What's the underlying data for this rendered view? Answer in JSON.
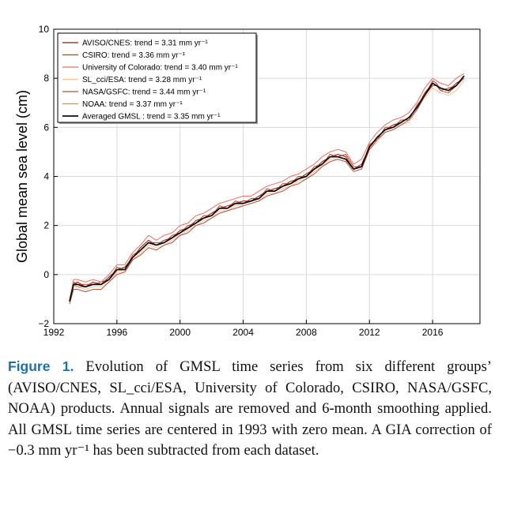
{
  "chart_data": {
    "type": "line",
    "title": "",
    "xlabel": "",
    "ylabel": "Global mean sea level (cm)",
    "xlim": [
      1992,
      2019
    ],
    "ylim": [
      -2,
      10
    ],
    "xticks": [
      1992,
      1996,
      2000,
      2004,
      2008,
      2012,
      2016
    ],
    "yticks": [
      -2,
      0,
      2,
      4,
      6,
      8,
      10
    ],
    "grid": true,
    "legend_position": "top-left",
    "x": [
      1993.0,
      1993.25,
      1993.5,
      1994.0,
      1994.5,
      1995.0,
      1995.5,
      1996.0,
      1996.5,
      1997.0,
      1997.5,
      1998.0,
      1998.5,
      1999.0,
      1999.5,
      2000.0,
      2000.5,
      2001.0,
      2001.5,
      2002.0,
      2002.5,
      2003.0,
      2003.5,
      2004.0,
      2004.5,
      2005.0,
      2005.5,
      2006.0,
      2006.5,
      2007.0,
      2007.5,
      2008.0,
      2008.5,
      2009.0,
      2009.5,
      2010.0,
      2010.5,
      2011.0,
      2011.5,
      2012.0,
      2012.5,
      2013.0,
      2013.5,
      2014.0,
      2014.5,
      2015.0,
      2015.5,
      2016.0,
      2016.25,
      2016.5,
      2017.0,
      2017.5,
      2018.0
    ],
    "series": [
      {
        "name": "AVISO/CNES: trend = 3.31 mm yr⁻¹",
        "color": "#8c1c13",
        "values": [
          -1.1,
          -0.4,
          -0.3,
          -0.5,
          -0.3,
          -0.4,
          -0.1,
          0.2,
          0.3,
          0.7,
          1.1,
          1.4,
          1.2,
          1.4,
          1.5,
          1.8,
          1.9,
          2.2,
          2.3,
          2.5,
          2.7,
          2.8,
          2.9,
          3.0,
          3.0,
          3.2,
          3.4,
          3.5,
          3.6,
          3.8,
          3.9,
          4.1,
          4.3,
          4.6,
          4.8,
          4.9,
          4.8,
          4.3,
          4.5,
          5.2,
          5.6,
          5.9,
          6.1,
          6.2,
          6.4,
          6.8,
          7.4,
          7.8,
          7.7,
          7.6,
          7.5,
          7.8,
          8.0
        ]
      },
      {
        "name": "CSIRO: trend = 3.36 mm yr⁻¹",
        "color": "#c0392b",
        "values": [
          -1.0,
          -0.3,
          -0.4,
          -0.4,
          -0.4,
          -0.3,
          -0.2,
          0.3,
          0.2,
          0.8,
          1.0,
          1.3,
          1.3,
          1.3,
          1.6,
          1.7,
          2.0,
          2.1,
          2.4,
          2.4,
          2.8,
          2.7,
          3.0,
          2.9,
          3.1,
          3.1,
          3.5,
          3.4,
          3.7,
          3.7,
          4.0,
          4.0,
          4.4,
          4.5,
          4.9,
          4.8,
          4.9,
          4.4,
          4.4,
          5.3,
          5.5,
          6.0,
          6.0,
          6.3,
          6.3,
          6.9,
          7.3,
          7.9,
          7.8,
          7.5,
          7.6,
          7.7,
          8.1
        ]
      },
      {
        "name": "University of Colorado: trend = 3.40 mm yr⁻¹",
        "color": "#e8705f",
        "values": [
          -1.1,
          -0.2,
          -0.2,
          -0.3,
          -0.2,
          -0.3,
          0.0,
          0.4,
          0.4,
          0.9,
          1.2,
          1.6,
          1.4,
          1.6,
          1.7,
          2.0,
          2.1,
          2.4,
          2.5,
          2.7,
          2.9,
          3.0,
          3.1,
          3.2,
          3.2,
          3.4,
          3.6,
          3.7,
          3.8,
          4.0,
          4.1,
          4.3,
          4.5,
          4.8,
          5.0,
          5.1,
          5.0,
          4.5,
          4.7,
          5.4,
          5.8,
          6.1,
          6.3,
          6.4,
          6.6,
          7.0,
          7.6,
          8.0,
          7.9,
          7.8,
          7.7,
          8.0,
          8.2
        ]
      },
      {
        "name": "SL_cci/ESA: trend = 3.28 mm yr⁻¹",
        "color": "#f6c39a",
        "values": [
          -1.0,
          -0.5,
          -0.5,
          -0.6,
          -0.5,
          -0.5,
          -0.3,
          0.1,
          0.1,
          0.6,
          0.9,
          1.2,
          1.1,
          1.2,
          1.4,
          1.6,
          1.8,
          2.0,
          2.2,
          2.3,
          2.6,
          2.6,
          2.8,
          2.8,
          2.9,
          3.0,
          3.3,
          3.3,
          3.5,
          3.6,
          3.8,
          3.9,
          4.2,
          4.4,
          4.7,
          4.7,
          4.6,
          4.2,
          4.3,
          5.1,
          5.4,
          5.8,
          5.9,
          6.1,
          6.2,
          6.7,
          7.2,
          7.6,
          7.5,
          7.4,
          7.3,
          7.5,
          7.9
        ]
      },
      {
        "name": "NASA/GSFC: trend = 3.44 mm yr⁻¹",
        "color": "#b5513a",
        "values": [
          -1.2,
          -0.6,
          -0.6,
          -0.7,
          -0.6,
          -0.6,
          -0.3,
          0.0,
          0.1,
          0.6,
          0.8,
          1.1,
          1.0,
          1.2,
          1.3,
          1.6,
          1.7,
          2.0,
          2.1,
          2.3,
          2.5,
          2.6,
          2.7,
          2.8,
          2.9,
          3.0,
          3.2,
          3.3,
          3.4,
          3.6,
          3.7,
          3.9,
          4.1,
          4.4,
          4.6,
          4.7,
          4.6,
          4.2,
          4.3,
          5.1,
          5.5,
          5.8,
          5.9,
          6.1,
          6.3,
          6.7,
          7.3,
          7.7,
          7.7,
          7.5,
          7.4,
          7.7,
          8.0
        ]
      },
      {
        "name": "NOAA: trend = 3.37 mm yr⁻¹",
        "color": "#d9826a",
        "values": [
          -1.0,
          -0.4,
          -0.5,
          -0.5,
          -0.4,
          -0.4,
          -0.2,
          0.2,
          0.2,
          0.7,
          1.0,
          1.3,
          1.2,
          1.3,
          1.5,
          1.7,
          1.9,
          2.1,
          2.3,
          2.4,
          2.7,
          2.7,
          2.9,
          2.9,
          3.0,
          3.1,
          3.4,
          3.4,
          3.6,
          3.7,
          3.9,
          4.0,
          4.3,
          4.5,
          4.8,
          4.8,
          4.7,
          4.3,
          4.4,
          5.2,
          5.6,
          5.9,
          6.0,
          6.2,
          6.4,
          6.8,
          7.3,
          7.8,
          7.7,
          7.6,
          7.5,
          7.7,
          8.0
        ]
      },
      {
        "name": "Averaged GMSL : trend = 3.35 mm yr⁻¹",
        "color": "#111111",
        "values": [
          -1.1,
          -0.4,
          -0.4,
          -0.5,
          -0.4,
          -0.4,
          -0.2,
          0.2,
          0.2,
          0.7,
          1.0,
          1.3,
          1.2,
          1.3,
          1.5,
          1.7,
          1.9,
          2.1,
          2.3,
          2.4,
          2.7,
          2.7,
          2.9,
          2.9,
          3.0,
          3.1,
          3.4,
          3.4,
          3.6,
          3.7,
          3.9,
          4.0,
          4.3,
          4.5,
          4.8,
          4.8,
          4.7,
          4.3,
          4.4,
          5.2,
          5.6,
          5.9,
          6.0,
          6.2,
          6.4,
          6.8,
          7.3,
          7.8,
          7.7,
          7.6,
          7.5,
          7.7,
          8.1
        ]
      }
    ]
  },
  "caption": {
    "label": "Figure 1.",
    "text": " Evolution of GMSL time series from six different groups’ (AVISO/CNES, SL_cci/ESA, University of Colorado, CSIRO, NASA/GSFC, NOAA) products. Annual signals are removed and 6-month smoothing applied. All GMSL time series are centered in 1993 with zero mean. A GIA correction of −0.3 mm yr⁻¹ has been subtracted from each dataset."
  }
}
